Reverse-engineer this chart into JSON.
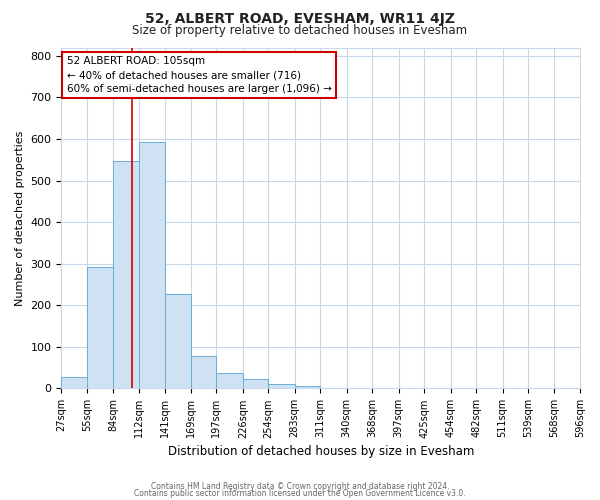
{
  "title": "52, ALBERT ROAD, EVESHAM, WR11 4JZ",
  "subtitle": "Size of property relative to detached houses in Evesham",
  "xlabel": "Distribution of detached houses by size in Evesham",
  "ylabel": "Number of detached properties",
  "bin_end": 596,
  "bar_heights": [
    28,
    292,
    547,
    592,
    226,
    77,
    37,
    23,
    10,
    5,
    0,
    0,
    0,
    0,
    0,
    0,
    0,
    0,
    0,
    0
  ],
  "bar_color": "#cfe2f3",
  "bar_edge_color": "#6baed6",
  "property_line_x": 105,
  "property_line_color": "#cc0000",
  "annotation_line1": "52 ALBERT ROAD: 105sqm",
  "annotation_line2": "← 40% of detached houses are smaller (716)",
  "annotation_line3": "60% of semi-detached houses are larger (1,096) →",
  "annotation_box_color": "#ffffff",
  "annotation_box_edge": "#cc0000",
  "ylim": [
    0,
    820
  ],
  "xlim_left": 27,
  "xlim_right": 596,
  "tick_positions": [
    27,
    55,
    84,
    112,
    141,
    169,
    197,
    226,
    254,
    283,
    311,
    340,
    368,
    397,
    425,
    454,
    482,
    511,
    539,
    568,
    596
  ],
  "tick_labels": [
    "27sqm",
    "55sqm",
    "84sqm",
    "112sqm",
    "141sqm",
    "169sqm",
    "197sqm",
    "226sqm",
    "254sqm",
    "283sqm",
    "311sqm",
    "340sqm",
    "368sqm",
    "397sqm",
    "425sqm",
    "454sqm",
    "482sqm",
    "511sqm",
    "539sqm",
    "568sqm",
    "596sqm"
  ],
  "yticks": [
    0,
    100,
    200,
    300,
    400,
    500,
    600,
    700,
    800
  ],
  "footer_line1": "Contains HM Land Registry data © Crown copyright and database right 2024.",
  "footer_line2": "Contains public sector information licensed under the Open Government Licence v3.0.",
  "grid_color": "#c8d8e8",
  "background_color": "#ffffff",
  "title_fontsize": 10,
  "subtitle_fontsize": 8.5,
  "xlabel_fontsize": 8.5,
  "ylabel_fontsize": 8,
  "tick_fontsize": 7,
  "footer_fontsize": 5.5
}
